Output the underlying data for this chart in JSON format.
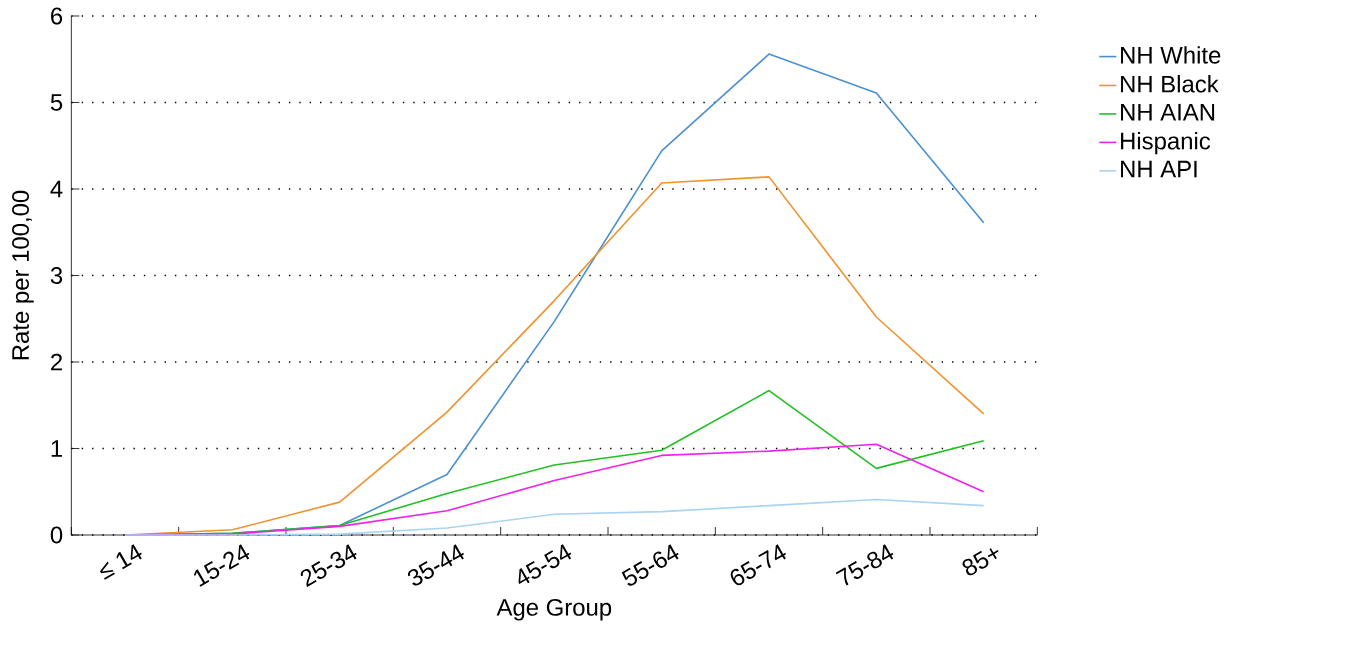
{
  "chart_data": {
    "type": "line",
    "xlabel": "Age Group",
    "ylabel": "Rate per 100,00",
    "categories": [
      "≤ 14",
      "15-24",
      "25-34",
      "35-44",
      "45-54",
      "55-64",
      "65-74",
      "75-84",
      "85+"
    ],
    "series": [
      {
        "name": "NH White",
        "color": "#4a90d0",
        "values": [
          0,
          0.02,
          0.11,
          0.7,
          2.47,
          4.44,
          5.56,
          5.11,
          3.61
        ]
      },
      {
        "name": "NH Black",
        "color": "#f0922e",
        "values": [
          0,
          0.06,
          0.38,
          1.42,
          2.71,
          4.07,
          4.14,
          2.52,
          1.4
        ]
      },
      {
        "name": "NH AIAN",
        "color": "#22c022",
        "values": [
          0,
          0.02,
          0.11,
          0.48,
          0.81,
          0.98,
          1.67,
          0.77,
          1.09
        ]
      },
      {
        "name": "Hispanic",
        "color": "#ee22ee",
        "values": [
          0,
          0.01,
          0.1,
          0.28,
          0.63,
          0.92,
          0.97,
          1.05,
          0.5
        ]
      },
      {
        "name": "NH API",
        "color": "#a8d4f2",
        "values": [
          0,
          0,
          0.01,
          0.08,
          0.24,
          0.27,
          0.34,
          0.41,
          0.34
        ]
      }
    ],
    "ylim": [
      0,
      6
    ],
    "yticks": [
      0,
      1,
      2,
      3,
      4,
      5,
      6
    ],
    "grid": "y",
    "legend": "right",
    "marker": "none",
    "line_style": "solid"
  }
}
